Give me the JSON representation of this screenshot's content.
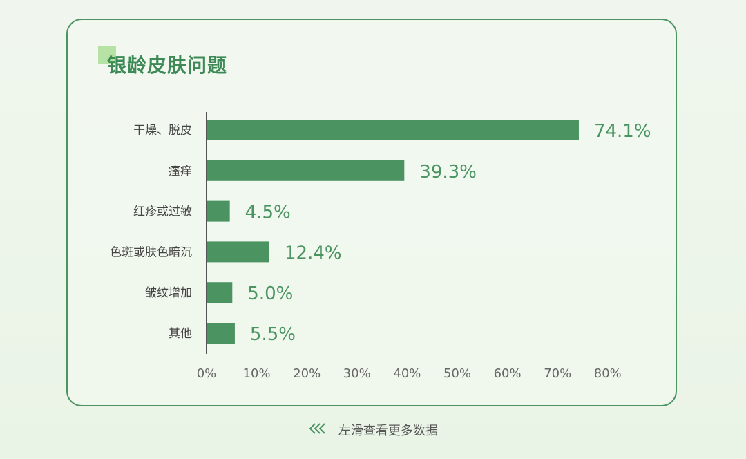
{
  "title": "银龄皮肤问题",
  "footer": {
    "hint": "左滑查看更多数据",
    "icon": "double-chevron-left-icon"
  },
  "colors": {
    "bar": "#4b9462",
    "value_label": "#4b9462",
    "axis": "#555555",
    "category_text": "#444444",
    "tick_text": "#666666",
    "title": "#3e8a57",
    "title_accent": "#b6e3a3",
    "border": "#4b9462"
  },
  "chart_data": {
    "type": "bar",
    "orientation": "horizontal",
    "categories": [
      "干燥、脱皮",
      "瘙痒",
      "红疹或过敏",
      "色斑或肤色暗沉",
      "皱纹增加",
      "其他"
    ],
    "values": [
      74.1,
      39.3,
      4.5,
      12.4,
      5.0,
      5.5
    ],
    "value_labels": [
      "74.1%",
      "39.3%",
      "4.5%",
      "12.4%",
      "5.0%",
      "5.5%"
    ],
    "x_ticks": [
      "0%",
      "10%",
      "20%",
      "30%",
      "40%",
      "50%",
      "60%",
      "70%",
      "80%"
    ],
    "xlim": [
      0,
      80
    ],
    "grid": false,
    "legend": "none"
  }
}
